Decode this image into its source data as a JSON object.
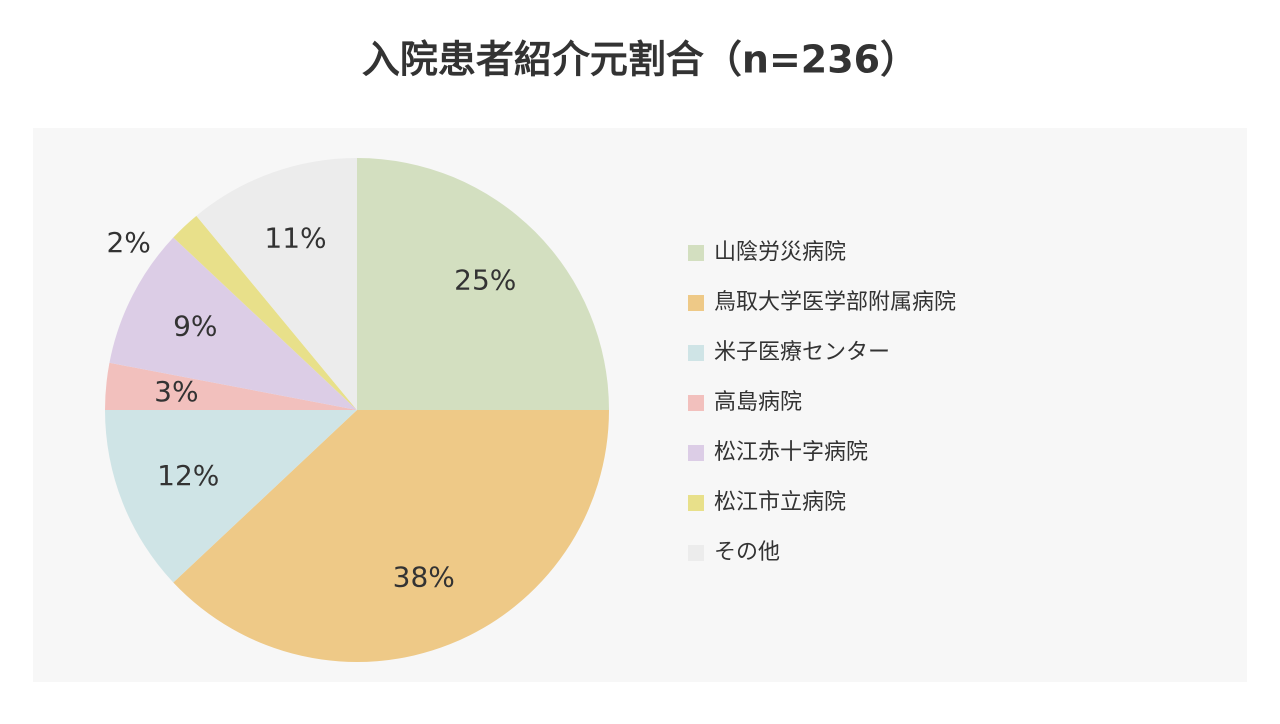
{
  "chart_data": {
    "type": "pie",
    "title": "入院患者紹介元割合（n=236）",
    "categories": [
      "山陰労災病院",
      "鳥取大学医学部附属病院",
      "米子医療センター",
      "高島病院",
      "松江赤十字病院",
      "松江市立病院",
      "その他"
    ],
    "values": [
      25,
      38,
      12,
      3,
      9,
      2,
      11
    ],
    "value_labels": [
      "25%",
      "38%",
      "12%",
      "3%",
      "9%",
      "2%",
      "11%"
    ],
    "colors": [
      "#d3dfc0",
      "#eec987",
      "#cfe4e6",
      "#f2c0bd",
      "#dccde6",
      "#e8e08a",
      "#ececec"
    ]
  }
}
